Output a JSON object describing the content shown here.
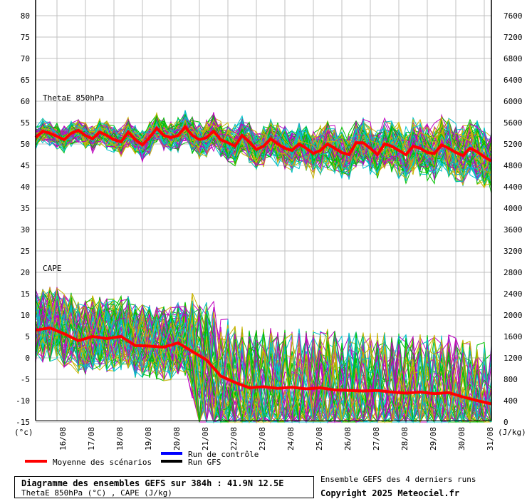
{
  "chart_data": {
    "type": "line",
    "title": "Diagramme des ensembles GEFS sur 384h : 41.9N 12.5E",
    "subtitle": "ThetaE 850hPa (°C) , CAPE (J/kg)",
    "left_axis": {
      "unit_label": "(°c)",
      "range": [
        -15,
        80
      ],
      "ticks": [
        "80",
        "75",
        "70",
        "65",
        "60",
        "55",
        "50",
        "45",
        "40",
        "35",
        "30",
        "25",
        "20",
        "15",
        "10",
        "5",
        "0",
        "-5",
        "-10",
        "-15"
      ]
    },
    "right_axis": {
      "unit_label": "(J/kg)",
      "range": [
        0,
        7600
      ],
      "ticks": [
        "7600",
        "7200",
        "6800",
        "6400",
        "6000",
        "5600",
        "5200",
        "4800",
        "4400",
        "4000",
        "3600",
        "3200",
        "2800",
        "2400",
        "2000",
        "1600",
        "1200",
        "800",
        "400",
        "0"
      ]
    },
    "x_ticks": [
      "16/08",
      "17/08",
      "18/08",
      "19/08",
      "20/08",
      "21/08",
      "22/08",
      "23/08",
      "24/08",
      "25/08",
      "26/08",
      "27/08",
      "28/08",
      "29/08",
      "30/08",
      "31/08"
    ],
    "grid": true,
    "panels": [
      {
        "label": "ThetaE 850hPa",
        "step_hours": 6,
        "mean": [
          51.5,
          53,
          52.5,
          51.8,
          51,
          52.5,
          53.2,
          52,
          51.2,
          52.8,
          52,
          51,
          50.5,
          52.8,
          51,
          49.8,
          51.5,
          53.7,
          52,
          51.5,
          52,
          54,
          52,
          51,
          51.5,
          53,
          51,
          50.3,
          49.5,
          52,
          50.5,
          48.7,
          49.5,
          51.2,
          50,
          49,
          48.5,
          50,
          49,
          47.8,
          48.5,
          50,
          49,
          48,
          47.5,
          50.3,
          50.3,
          49,
          47.5,
          50,
          49.5,
          48.5,
          47.5,
          49.5,
          49,
          48,
          47.8,
          49.8,
          49,
          48,
          47.3,
          49,
          48.2,
          47,
          46
        ]
      },
      {
        "label": "CAPE",
        "step_hours": 12,
        "mean_jkg": [
          1720,
          1760,
          1650,
          1520,
          1600,
          1560,
          1600,
          1430,
          1420,
          1400,
          1480,
          1320,
          1160,
          860,
          740,
          640,
          660,
          630,
          650,
          620,
          640,
          600,
          590,
          580,
          590,
          560,
          540,
          560,
          530,
          550,
          470,
          400,
          340
        ]
      }
    ],
    "legend": [
      {
        "label": "Run de contrôle",
        "color": "#0000ff"
      },
      {
        "label": "Run GFS",
        "color": "#000000"
      },
      {
        "label": "Moyenne des scénarios",
        "color": "#ff0000"
      }
    ],
    "member_colors": [
      "#00c000",
      "#c000c0",
      "#c8b400",
      "#00c0c8"
    ],
    "footer_right": [
      "Ensemble GEFS des 4 derniers runs",
      "Copyright 2025 Meteociel.fr"
    ]
  }
}
